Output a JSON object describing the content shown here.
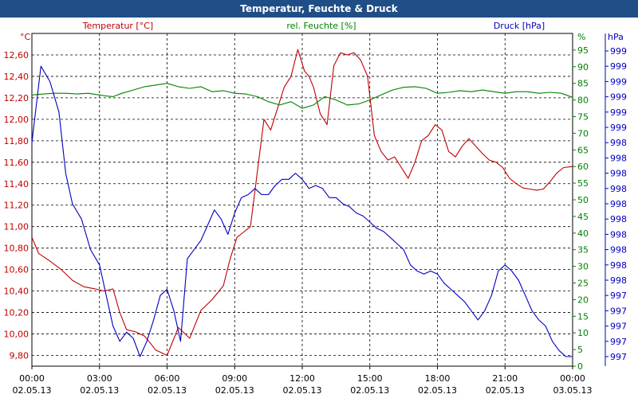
{
  "window": {
    "title": "Temperatur, Feuchte & Druck"
  },
  "colors": {
    "temperature": "#c00000",
    "humidity": "#008000",
    "pressure": "#0000c0",
    "titlebar": "#1f4e86",
    "grid": "#000000"
  },
  "chart_data": {
    "type": "line",
    "title": "Temperatur, Feuchte & Druck",
    "grid": true,
    "x": {
      "ticks": [
        {
          "time": "00:00",
          "date": "02.05.13"
        },
        {
          "time": "03:00",
          "date": "02.05.13"
        },
        {
          "time": "06:00",
          "date": "02.05.13"
        },
        {
          "time": "09:00",
          "date": "02.05.13"
        },
        {
          "time": "12:00",
          "date": "02.05.13"
        },
        {
          "time": "15:00",
          "date": "02.05.13"
        },
        {
          "time": "18:00",
          "date": "02.05.13"
        },
        {
          "time": "21:00",
          "date": "02.05.13"
        },
        {
          "time": "00:00",
          "date": "03.05.13"
        }
      ],
      "range_hours": [
        0,
        24
      ]
    },
    "axes": {
      "temperature": {
        "label": "Temperatur [°C]",
        "unit": "°C",
        "side": "left",
        "range": [
          9.7,
          12.8
        ],
        "ticks": [
          "9,80",
          "10,00",
          "10,20",
          "10,40",
          "10,60",
          "10,80",
          "11,00",
          "11,20",
          "11,40",
          "11,60",
          "11,80",
          "12,00",
          "12,20",
          "12,40",
          "12,60"
        ]
      },
      "humidity": {
        "label": "rel. Feuchte [%]",
        "unit": "%",
        "side": "right",
        "range": [
          0,
          100
        ],
        "ticks": [
          "0",
          "5",
          "10",
          "15",
          "20",
          "25",
          "30",
          "35",
          "40",
          "45",
          "50",
          "55",
          "60",
          "65",
          "70",
          "75",
          "80",
          "85",
          "90",
          "95"
        ]
      },
      "pressure": {
        "label": "Druck [hPa]",
        "unit": "hPa",
        "side": "right-outer",
        "ticks": [
          "997",
          "997",
          "997",
          "997",
          "997",
          "998",
          "998",
          "998",
          "998",
          "998",
          "998",
          "998",
          "998",
          "998",
          "998",
          "999",
          "999",
          "999",
          "999",
          "999",
          "999"
        ]
      }
    },
    "series": [
      {
        "name": "Temperatur [°C]",
        "axis": "temperature",
        "color": "#c00000",
        "hours": [
          0,
          0.3,
          0.8,
          1.3,
          1.8,
          2.3,
          2.8,
          3.2,
          3.6,
          3.9,
          4.2,
          4.6,
          5.0,
          5.5,
          6.0,
          6.5,
          7.0,
          7.5,
          8.0,
          8.5,
          8.8,
          9.1,
          9.4,
          9.7,
          10.0,
          10.3,
          10.6,
          10.9,
          11.2,
          11.5,
          11.8,
          12.1,
          12.3,
          12.5,
          12.8,
          13.1,
          13.4,
          13.7,
          14.0,
          14.3,
          14.6,
          14.9,
          15.2,
          15.5,
          15.8,
          16.1,
          16.4,
          16.7,
          17.0,
          17.3,
          17.6,
          17.9,
          18.2,
          18.5,
          18.8,
          19.1,
          19.4,
          19.7,
          20.0,
          20.3,
          20.6,
          20.9,
          21.2,
          21.5,
          21.8,
          22.1,
          22.4,
          22.7,
          23.0,
          23.3,
          23.6,
          24.0
        ],
        "values": [
          10.9,
          10.75,
          10.68,
          10.6,
          10.5,
          10.44,
          10.42,
          10.4,
          10.42,
          10.2,
          10.04,
          10.02,
          9.98,
          9.85,
          9.8,
          10.06,
          9.96,
          10.22,
          10.32,
          10.45,
          10.7,
          10.9,
          10.95,
          11.0,
          11.5,
          12.0,
          11.9,
          12.1,
          12.3,
          12.4,
          12.65,
          12.45,
          12.4,
          12.3,
          12.05,
          11.95,
          12.5,
          12.62,
          12.6,
          12.62,
          12.55,
          12.4,
          11.85,
          11.7,
          11.62,
          11.65,
          11.55,
          11.45,
          11.6,
          11.8,
          11.85,
          11.95,
          11.9,
          11.7,
          11.65,
          11.75,
          11.82,
          11.75,
          11.68,
          11.62,
          11.6,
          11.55,
          11.45,
          11.4,
          11.36,
          11.35,
          11.34,
          11.35,
          11.42,
          11.5,
          11.55,
          11.56
        ]
      },
      {
        "name": "rel. Feuchte [%]",
        "axis": "humidity",
        "color": "#008000",
        "hours": [
          0,
          0.5,
          1,
          1.5,
          2,
          2.5,
          3,
          3.3,
          3.6,
          4,
          4.5,
          5,
          5.5,
          6,
          6.5,
          7,
          7.5,
          8,
          8.5,
          9,
          9.5,
          10,
          10.5,
          11,
          11.5,
          12,
          12.5,
          13,
          13.5,
          14,
          14.5,
          15,
          15.5,
          16,
          16.5,
          17,
          17.5,
          18,
          18.5,
          19,
          19.5,
          20,
          20.5,
          21,
          21.5,
          22,
          22.5,
          23,
          23.5,
          24
        ],
        "values": [
          81.5,
          81.8,
          82,
          82,
          81.8,
          82,
          81.5,
          81.2,
          81,
          82,
          83,
          84,
          84.5,
          85,
          84,
          83.5,
          84,
          82.5,
          82.8,
          82,
          81.8,
          81,
          79.5,
          78.5,
          79.5,
          77.5,
          78.5,
          81,
          80,
          78.5,
          78.8,
          80,
          81.5,
          83,
          83.8,
          84,
          83.5,
          82,
          82.3,
          82.8,
          82.5,
          83,
          82.5,
          82,
          82.5,
          82.5,
          82,
          82.3,
          82,
          80.8
        ]
      },
      {
        "name": "Druck [hPa]",
        "axis": "pressure",
        "color": "#0000c0",
        "hours": [
          0,
          0.4,
          0.8,
          1.2,
          1.5,
          1.8,
          2.2,
          2.6,
          3.0,
          3.3,
          3.6,
          3.9,
          4.2,
          4.5,
          4.8,
          5.1,
          5.4,
          5.7,
          6.0,
          6.3,
          6.6,
          6.9,
          7.2,
          7.5,
          7.8,
          8.1,
          8.4,
          8.7,
          9.0,
          9.3,
          9.6,
          9.9,
          10.2,
          10.5,
          10.8,
          11.1,
          11.4,
          11.7,
          12.0,
          12.3,
          12.6,
          12.9,
          13.2,
          13.5,
          13.8,
          14.1,
          14.4,
          14.7,
          15.0,
          15.3,
          15.6,
          15.9,
          16.2,
          16.5,
          16.8,
          17.1,
          17.4,
          17.7,
          18.0,
          18.3,
          18.6,
          18.9,
          19.2,
          19.5,
          19.8,
          20.1,
          20.4,
          20.7,
          21.0,
          21.3,
          21.6,
          21.9,
          22.2,
          22.5,
          22.8,
          23.1,
          23.4,
          23.7,
          24.0
        ],
        "positions": [
          0.7,
          0.95,
          0.9,
          0.8,
          0.6,
          0.5,
          0.45,
          0.35,
          0.3,
          0.2,
          0.1,
          0.05,
          0.08,
          0.06,
          0.0,
          0.05,
          0.12,
          0.2,
          0.22,
          0.15,
          0.05,
          0.32,
          0.35,
          0.38,
          0.43,
          0.48,
          0.45,
          0.4,
          0.47,
          0.52,
          0.53,
          0.55,
          0.53,
          0.53,
          0.56,
          0.58,
          0.58,
          0.6,
          0.58,
          0.55,
          0.56,
          0.55,
          0.52,
          0.52,
          0.5,
          0.49,
          0.47,
          0.46,
          0.44,
          0.42,
          0.41,
          0.39,
          0.37,
          0.35,
          0.3,
          0.28,
          0.27,
          0.28,
          0.27,
          0.24,
          0.22,
          0.2,
          0.18,
          0.15,
          0.12,
          0.15,
          0.2,
          0.28,
          0.3,
          0.28,
          0.25,
          0.2,
          0.15,
          0.12,
          0.1,
          0.05,
          0.02,
          0.0,
          0.0
        ]
      }
    ]
  }
}
